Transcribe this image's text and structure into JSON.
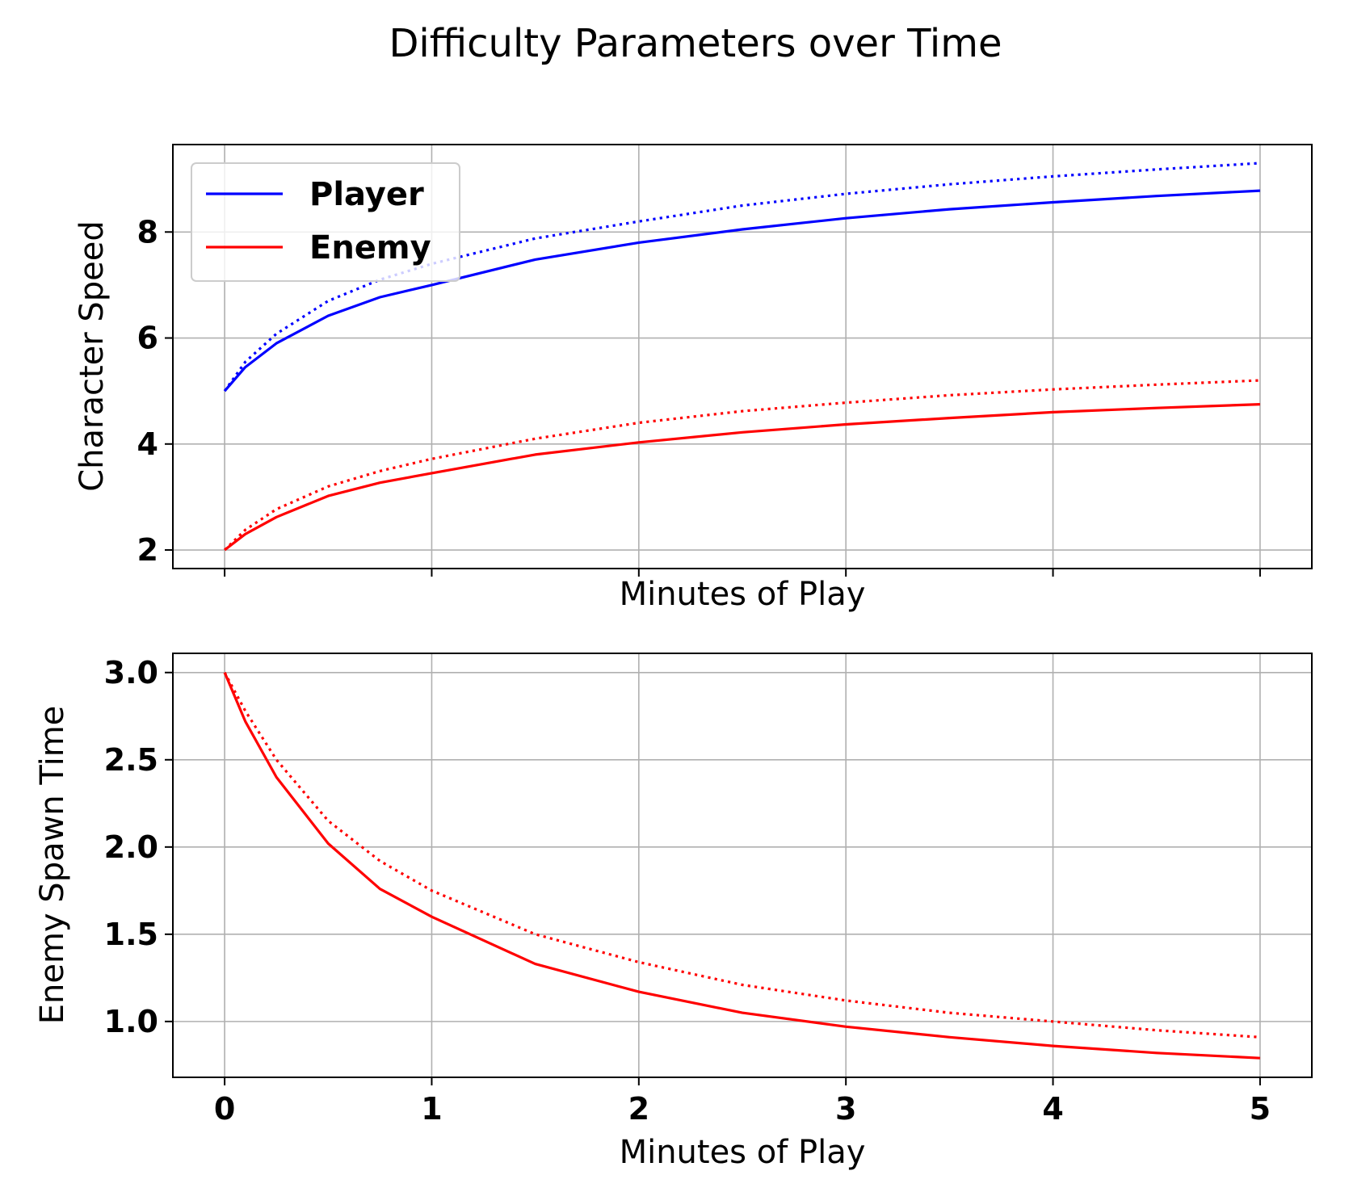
{
  "title": "Difficulty Parameters over Time",
  "colors": {
    "player": "#0000ff",
    "enemy": "#ff0000"
  },
  "chart_data": [
    {
      "type": "line",
      "xlabel": "Minutes of Play",
      "ylabel": "Character Speed",
      "xlim": [
        -0.25,
        5.25
      ],
      "ylim": [
        1.65,
        9.65
      ],
      "xticks": [
        0,
        1,
        2,
        3,
        4,
        5
      ],
      "xtick_labels_visible": false,
      "yticks": [
        2,
        4,
        6,
        8
      ],
      "ytick_labels": [
        "2",
        "4",
        "6",
        "8"
      ],
      "grid": true,
      "legend": {
        "placement": "upper-left",
        "entries": [
          "Player",
          "Enemy"
        ]
      },
      "x": [
        0,
        0.1,
        0.25,
        0.5,
        0.75,
        1,
        1.5,
        2,
        2.5,
        3,
        3.5,
        4,
        4.5,
        5
      ],
      "series": [
        {
          "name": "Player",
          "color": "#0000ff",
          "style": "solid",
          "values": [
            5.0,
            5.45,
            5.9,
            6.42,
            6.77,
            7.0,
            7.48,
            7.8,
            8.05,
            8.26,
            8.43,
            8.56,
            8.68,
            8.78
          ]
        },
        {
          "color": "#0000ff",
          "style": "dotted",
          "values": [
            5.0,
            5.55,
            6.08,
            6.7,
            7.1,
            7.4,
            7.88,
            8.2,
            8.5,
            8.72,
            8.9,
            9.05,
            9.18,
            9.3
          ]
        },
        {
          "name": "Enemy",
          "color": "#ff0000",
          "style": "solid",
          "values": [
            2.0,
            2.3,
            2.62,
            3.02,
            3.27,
            3.45,
            3.8,
            4.03,
            4.22,
            4.37,
            4.49,
            4.6,
            4.68,
            4.75
          ]
        },
        {
          "color": "#ff0000",
          "style": "dotted",
          "values": [
            2.0,
            2.38,
            2.77,
            3.2,
            3.49,
            3.72,
            4.1,
            4.4,
            4.62,
            4.78,
            4.92,
            5.03,
            5.12,
            5.2
          ]
        }
      ]
    },
    {
      "type": "line",
      "xlabel": "Minutes of Play",
      "ylabel": "Enemy Spawn Time",
      "xlim": [
        -0.25,
        5.25
      ],
      "ylim": [
        0.68,
        3.11
      ],
      "xticks": [
        0,
        1,
        2,
        3,
        4,
        5
      ],
      "xtick_labels": [
        "0",
        "1",
        "2",
        "3",
        "4",
        "5"
      ],
      "yticks": [
        1.0,
        1.5,
        2.0,
        2.5,
        3.0
      ],
      "ytick_labels": [
        "1.0",
        "1.5",
        "2.0",
        "2.5",
        "3.0"
      ],
      "grid": true,
      "x": [
        0,
        0.1,
        0.25,
        0.5,
        0.75,
        1,
        1.5,
        2,
        2.5,
        3,
        3.5,
        4,
        4.5,
        5
      ],
      "series": [
        {
          "color": "#ff0000",
          "style": "solid",
          "values": [
            3.0,
            2.72,
            2.4,
            2.02,
            1.76,
            1.6,
            1.33,
            1.17,
            1.05,
            0.97,
            0.91,
            0.86,
            0.82,
            0.79
          ]
        },
        {
          "color": "#ff0000",
          "style": "dotted",
          "values": [
            3.0,
            2.78,
            2.5,
            2.15,
            1.92,
            1.75,
            1.5,
            1.34,
            1.21,
            1.12,
            1.05,
            1.0,
            0.95,
            0.91
          ]
        }
      ]
    }
  ]
}
